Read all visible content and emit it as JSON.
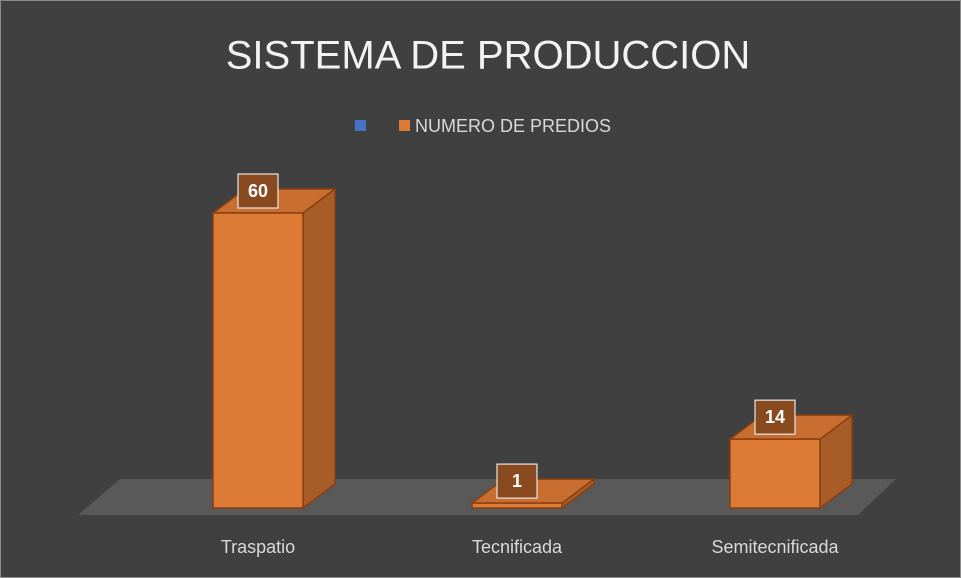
{
  "chart_data": {
    "type": "bar3d",
    "title": "SISTEMA DE PRODUCCION",
    "categories": [
      "Traspatio",
      "Tecnificada",
      "Semitecnificada"
    ],
    "series": [
      {
        "color": "#4472c4",
        "values": [
          null,
          null,
          null
        ]
      },
      {
        "name": "NUMERO DE PREDIOS",
        "color": "#dd7a35",
        "values": [
          60,
          1,
          14
        ]
      }
    ]
  }
}
